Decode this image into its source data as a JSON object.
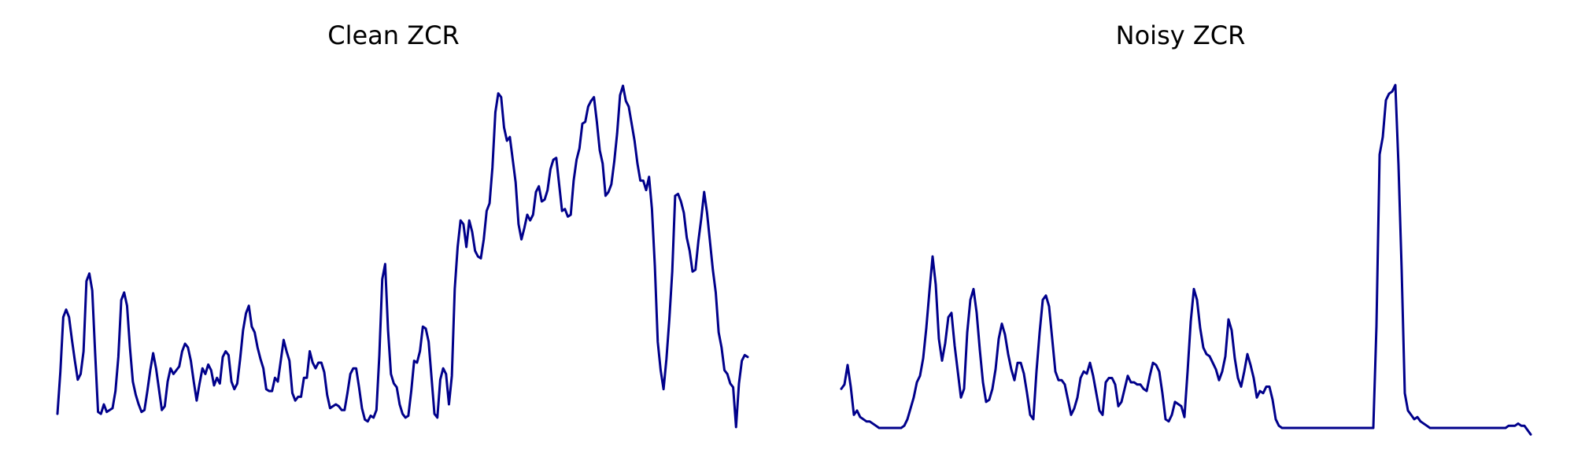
{
  "chart_data": [
    {
      "type": "line",
      "title": "Clean ZCR",
      "xlabel": "",
      "ylabel": "",
      "axes_visible": false,
      "grid": false,
      "color": "#00008b",
      "values": [
        0.12,
        0.34,
        0.63,
        0.67,
        0.63,
        0.51,
        0.4,
        0.3,
        0.33,
        0.45,
        0.82,
        0.86,
        0.77,
        0.44,
        0.13,
        0.12,
        0.17,
        0.13,
        0.14,
        0.15,
        0.24,
        0.42,
        0.72,
        0.76,
        0.69,
        0.47,
        0.29,
        0.22,
        0.17,
        0.13,
        0.14,
        0.24,
        0.35,
        0.44,
        0.36,
        0.25,
        0.14,
        0.16,
        0.29,
        0.36,
        0.33,
        0.35,
        0.37,
        0.45,
        0.49,
        0.47,
        0.4,
        0.29,
        0.19,
        0.28,
        0.36,
        0.33,
        0.38,
        0.35,
        0.27,
        0.31,
        0.28,
        0.42,
        0.45,
        0.43,
        0.29,
        0.25,
        0.28,
        0.41,
        0.56,
        0.65,
        0.69,
        0.58,
        0.55,
        0.47,
        0.41,
        0.36,
        0.25,
        0.24,
        0.24,
        0.31,
        0.29,
        0.4,
        0.51,
        0.45,
        0.4,
        0.23,
        0.19,
        0.21,
        0.21,
        0.31,
        0.31,
        0.45,
        0.39,
        0.36,
        0.39,
        0.39,
        0.34,
        0.22,
        0.15,
        0.16,
        0.17,
        0.16,
        0.14,
        0.14,
        0.23,
        0.33,
        0.36,
        0.36,
        0.26,
        0.15,
        0.09,
        0.08,
        0.11,
        0.1,
        0.14,
        0.43,
        0.83,
        0.91,
        0.56,
        0.33,
        0.28,
        0.26,
        0.17,
        0.12,
        0.1,
        0.11,
        0.24,
        0.4,
        0.39,
        0.45,
        0.58,
        0.57,
        0.5,
        0.31,
        0.12,
        0.1,
        0.3,
        0.36,
        0.33,
        0.17,
        0.32,
        0.78,
        1.0,
        1.14,
        1.12,
        1.0,
        1.14,
        1.08,
        0.98,
        0.95,
        0.94,
        1.04,
        1.19,
        1.23,
        1.42,
        1.71,
        1.81,
        1.79,
        1.63,
        1.56,
        1.58,
        1.46,
        1.34,
        1.12,
        1.04,
        1.1,
        1.17,
        1.14,
        1.17,
        1.29,
        1.32,
        1.24,
        1.25,
        1.3,
        1.41,
        1.46,
        1.47,
        1.33,
        1.19,
        1.2,
        1.16,
        1.17,
        1.35,
        1.46,
        1.52,
        1.65,
        1.66,
        1.74,
        1.77,
        1.79,
        1.66,
        1.51,
        1.44,
        1.27,
        1.29,
        1.33,
        1.45,
        1.6,
        1.8,
        1.85,
        1.77,
        1.74,
        1.65,
        1.56,
        1.44,
        1.35,
        1.35,
        1.3,
        1.37,
        1.2,
        0.9,
        0.5,
        0.35,
        0.25,
        0.41,
        0.62,
        0.87,
        1.27,
        1.28,
        1.24,
        1.18,
        1.05,
        0.98,
        0.87,
        0.88,
        1.03,
        1.15,
        1.29,
        1.18,
        1.03,
        0.88,
        0.76,
        0.55,
        0.47,
        0.35,
        0.33,
        0.28,
        0.26,
        0.05,
        0.28,
        0.4,
        0.43,
        0.42
      ],
      "ylim": [
        0,
        1.9
      ]
    },
    {
      "type": "line",
      "title": "Noisy ZCR",
      "xlabel": "",
      "ylabel": "",
      "axes_visible": false,
      "grid": false,
      "color": "#00008b",
      "values": [
        0.22,
        0.24,
        0.33,
        0.23,
        0.1,
        0.12,
        0.09,
        0.08,
        0.07,
        0.07,
        0.06,
        0.05,
        0.04,
        0.04,
        0.04,
        0.04,
        0.04,
        0.04,
        0.04,
        0.04,
        0.05,
        0.08,
        0.13,
        0.18,
        0.25,
        0.28,
        0.36,
        0.5,
        0.67,
        0.83,
        0.7,
        0.45,
        0.35,
        0.43,
        0.55,
        0.57,
        0.42,
        0.3,
        0.18,
        0.22,
        0.48,
        0.63,
        0.68,
        0.57,
        0.4,
        0.25,
        0.16,
        0.17,
        0.22,
        0.31,
        0.45,
        0.52,
        0.47,
        0.38,
        0.31,
        0.26,
        0.34,
        0.34,
        0.29,
        0.2,
        0.1,
        0.08,
        0.3,
        0.48,
        0.63,
        0.65,
        0.6,
        0.45,
        0.3,
        0.26,
        0.26,
        0.24,
        0.17,
        0.1,
        0.13,
        0.18,
        0.27,
        0.3,
        0.29,
        0.34,
        0.28,
        0.2,
        0.12,
        0.1,
        0.25,
        0.27,
        0.27,
        0.24,
        0.14,
        0.16,
        0.22,
        0.28,
        0.25,
        0.25,
        0.24,
        0.24,
        0.22,
        0.21,
        0.28,
        0.34,
        0.33,
        0.3,
        0.2,
        0.08,
        0.07,
        0.1,
        0.16,
        0.15,
        0.14,
        0.09,
        0.3,
        0.53,
        0.68,
        0.63,
        0.5,
        0.41,
        0.38,
        0.37,
        0.34,
        0.31,
        0.26,
        0.3,
        0.37,
        0.54,
        0.49,
        0.36,
        0.27,
        0.23,
        0.3,
        0.38,
        0.33,
        0.27,
        0.18,
        0.21,
        0.2,
        0.23,
        0.23,
        0.17,
        0.08,
        0.05,
        0.04,
        0.04,
        0.04,
        0.04,
        0.04,
        0.04,
        0.04,
        0.04,
        0.04,
        0.04,
        0.04,
        0.04,
        0.04,
        0.04,
        0.04,
        0.04,
        0.04,
        0.04,
        0.04,
        0.04,
        0.04,
        0.04,
        0.04,
        0.04,
        0.04,
        0.04,
        0.04,
        0.04,
        0.04,
        0.04,
        0.51,
        1.3,
        1.38,
        1.55,
        1.58,
        1.59,
        1.62,
        1.25,
        0.77,
        0.2,
        0.12,
        0.1,
        0.08,
        0.09,
        0.07,
        0.06,
        0.05,
        0.04,
        0.04,
        0.04,
        0.04,
        0.04,
        0.04,
        0.04,
        0.04,
        0.04,
        0.04,
        0.04,
        0.04,
        0.04,
        0.04,
        0.04,
        0.04,
        0.04,
        0.04,
        0.04,
        0.04,
        0.04,
        0.04,
        0.04,
        0.04,
        0.04,
        0.05,
        0.05,
        0.05,
        0.06,
        0.05,
        0.05,
        0.03,
        0.01
      ],
      "ylim": [
        0,
        1.66
      ]
    }
  ]
}
